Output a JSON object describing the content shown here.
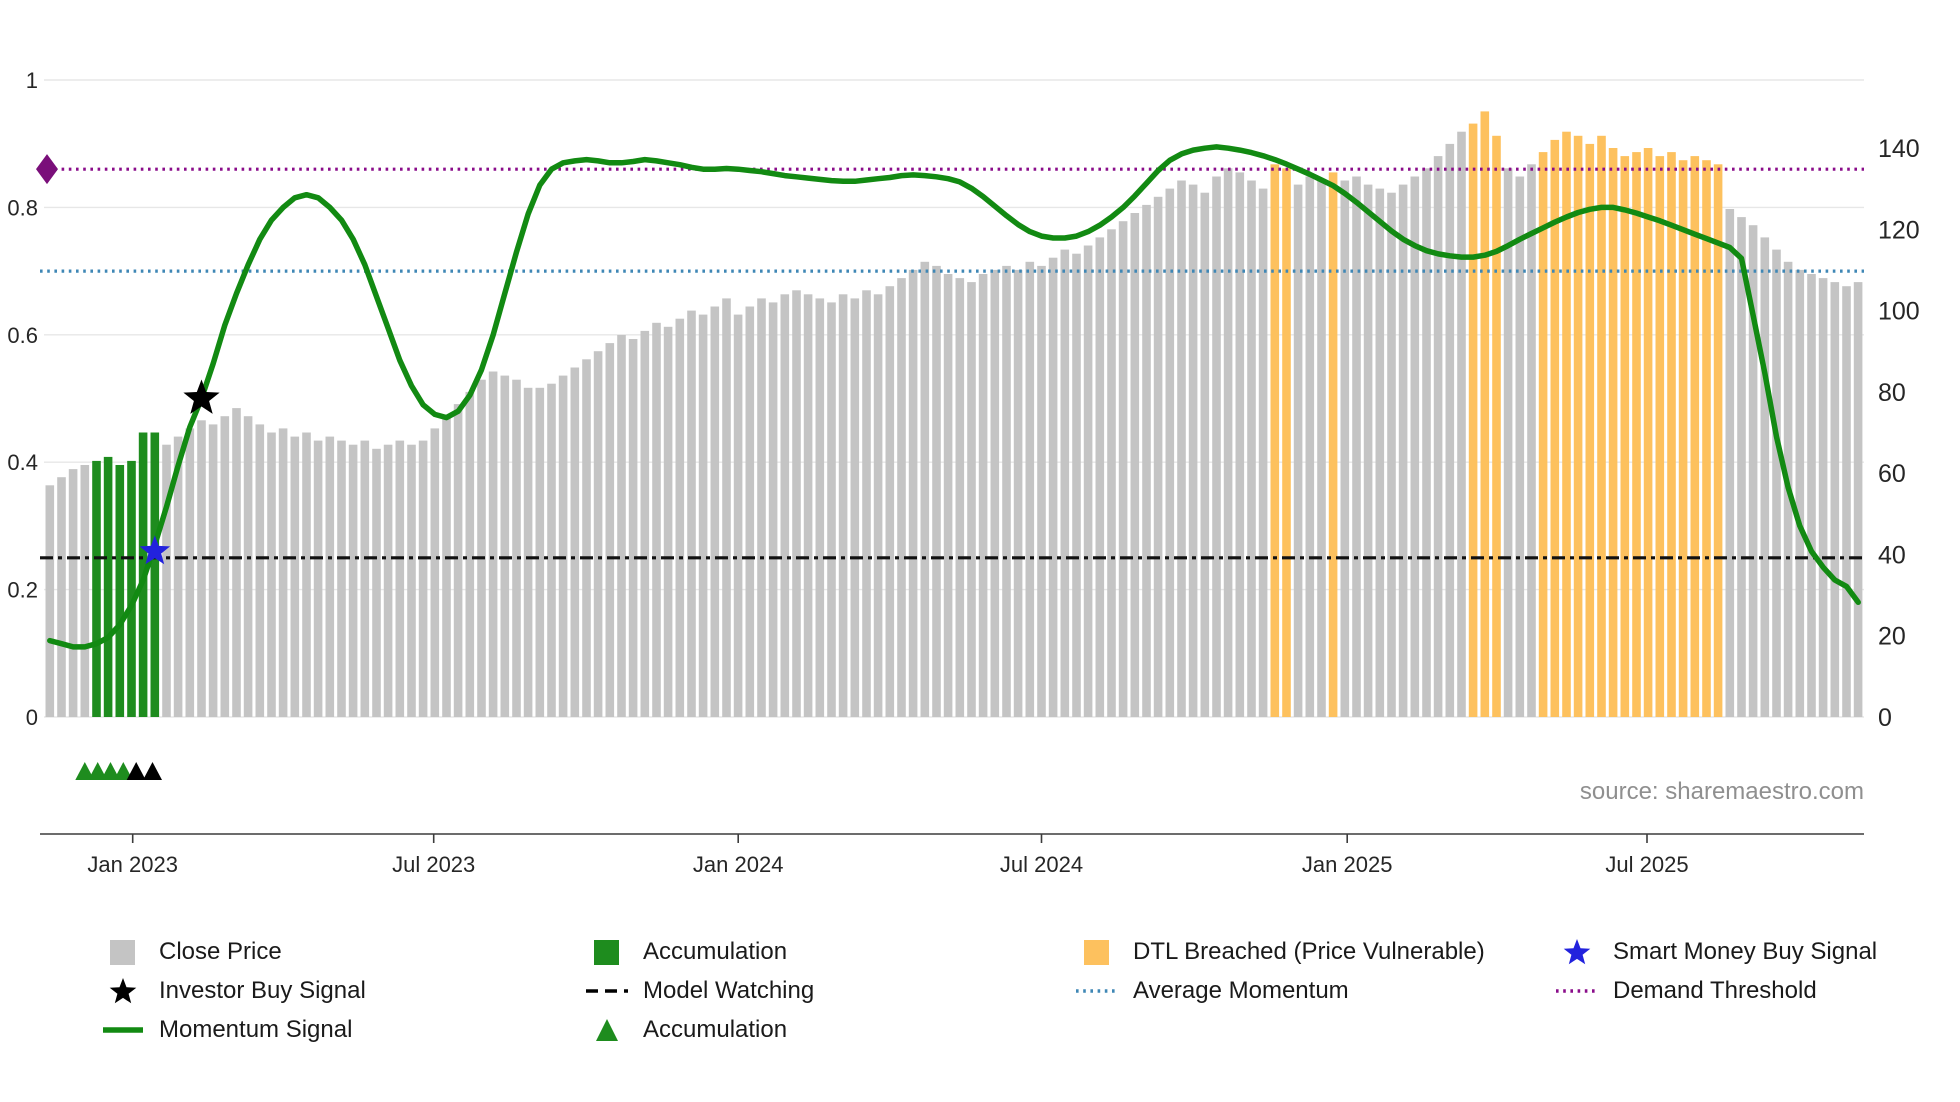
{
  "chart_data": {
    "type": "bar",
    "title": "",
    "source": "source: sharemaestro.com",
    "grid": true,
    "x_axis": {
      "ticks": [
        {
          "label": "Jan 2023",
          "index": 7.6
        },
        {
          "label": "Jul 2023",
          "index": 33.4
        },
        {
          "label": "Jan 2024",
          "index": 59.5
        },
        {
          "label": "Jul 2024",
          "index": 85.5
        },
        {
          "label": "Jan 2025",
          "index": 111.7
        },
        {
          "label": "Jul 2025",
          "index": 137.4
        }
      ]
    },
    "left_axis": {
      "range": [
        0,
        1
      ],
      "ticks": [
        {
          "value": 0,
          "label": "0"
        },
        {
          "value": 0.2,
          "label": "0.2"
        },
        {
          "value": 0.4,
          "label": "0.4"
        },
        {
          "value": 0.6,
          "label": "0.6"
        },
        {
          "value": 0.8,
          "label": "0.8"
        },
        {
          "value": 1,
          "label": "1"
        }
      ]
    },
    "right_axis": {
      "range": [
        0,
        140
      ],
      "ticks": [
        {
          "value": 0,
          "label": "0"
        },
        {
          "value": 20,
          "label": "20"
        },
        {
          "value": 40,
          "label": "40"
        },
        {
          "value": 60,
          "label": "60"
        },
        {
          "value": 80,
          "label": "80"
        },
        {
          "value": 100,
          "label": "100"
        },
        {
          "value": 120,
          "label": "120"
        },
        {
          "value": 140,
          "label": "140"
        }
      ]
    },
    "price_series": {
      "name": "Close Price",
      "axis": "right",
      "values": [
        57,
        59,
        61,
        62,
        63,
        64,
        62,
        63,
        70,
        70,
        67,
        69,
        71,
        73,
        72,
        74,
        76,
        74,
        72,
        70,
        71,
        69,
        70,
        68,
        69,
        68,
        67,
        68,
        66,
        67,
        68,
        67,
        68,
        71,
        74,
        77,
        80,
        83,
        85,
        84,
        83,
        81,
        81,
        82,
        84,
        86,
        88,
        90,
        92,
        94,
        93,
        95,
        97,
        96,
        98,
        100,
        99,
        101,
        103,
        99,
        101,
        103,
        102,
        104,
        105,
        104,
        103,
        102,
        104,
        103,
        105,
        104,
        106,
        108,
        110,
        112,
        111,
        109,
        108,
        107,
        109,
        110,
        111,
        110,
        112,
        111,
        113,
        115,
        114,
        116,
        118,
        120,
        122,
        124,
        126,
        128,
        130,
        132,
        131,
        129,
        133,
        135,
        134,
        132,
        130,
        136,
        135,
        131,
        133,
        132,
        134,
        132,
        133,
        131,
        130,
        129,
        131,
        133,
        135,
        138,
        141,
        144,
        146,
        149,
        143,
        135,
        133,
        136,
        139,
        142,
        144,
        143,
        141,
        143,
        140,
        138,
        139,
        140,
        138,
        139,
        137,
        138,
        137,
        136,
        125,
        123,
        121,
        118,
        115,
        112,
        110,
        109,
        108,
        107,
        106,
        107
      ],
      "accumulation_indices": [
        4,
        5,
        6,
        7,
        8,
        9
      ],
      "dtl_breached_indices": [
        105,
        106,
        110,
        122,
        123,
        124,
        128,
        129,
        130,
        131,
        132,
        133,
        134,
        135,
        136,
        137,
        138,
        139,
        140,
        141,
        142,
        143
      ]
    },
    "momentum_series": {
      "name": "Momentum Signal",
      "axis": "left",
      "values": [
        0.12,
        0.115,
        0.11,
        0.11,
        0.115,
        0.125,
        0.145,
        0.175,
        0.215,
        0.27,
        0.33,
        0.395,
        0.455,
        0.5,
        0.555,
        0.615,
        0.665,
        0.71,
        0.75,
        0.78,
        0.8,
        0.815,
        0.82,
        0.815,
        0.8,
        0.78,
        0.75,
        0.71,
        0.66,
        0.61,
        0.56,
        0.52,
        0.49,
        0.475,
        0.47,
        0.48,
        0.505,
        0.545,
        0.6,
        0.665,
        0.73,
        0.79,
        0.835,
        0.86,
        0.87,
        0.873,
        0.875,
        0.873,
        0.87,
        0.87,
        0.872,
        0.875,
        0.873,
        0.87,
        0.867,
        0.863,
        0.86,
        0.86,
        0.861,
        0.86,
        0.858,
        0.856,
        0.853,
        0.85,
        0.848,
        0.846,
        0.844,
        0.842,
        0.841,
        0.841,
        0.843,
        0.845,
        0.847,
        0.85,
        0.851,
        0.85,
        0.848,
        0.845,
        0.84,
        0.83,
        0.817,
        0.802,
        0.787,
        0.773,
        0.762,
        0.755,
        0.752,
        0.752,
        0.755,
        0.762,
        0.772,
        0.785,
        0.8,
        0.818,
        0.838,
        0.858,
        0.874,
        0.884,
        0.89,
        0.893,
        0.895,
        0.893,
        0.89,
        0.886,
        0.881,
        0.875,
        0.868,
        0.86,
        0.852,
        0.843,
        0.834,
        0.822,
        0.808,
        0.793,
        0.778,
        0.763,
        0.75,
        0.74,
        0.732,
        0.727,
        0.724,
        0.722,
        0.722,
        0.725,
        0.731,
        0.74,
        0.75,
        0.759,
        0.768,
        0.777,
        0.785,
        0.792,
        0.797,
        0.8,
        0.8,
        0.796,
        0.791,
        0.785,
        0.779,
        0.772,
        0.765,
        0.758,
        0.751,
        0.744,
        0.737,
        0.72,
        0.63,
        0.54,
        0.44,
        0.36,
        0.3,
        0.26,
        0.235,
        0.215,
        0.205,
        0.18
      ]
    },
    "threshold_lines": [
      {
        "id": "demand-threshold",
        "name": "Demand Threshold",
        "value": 0.86,
        "color": "#8a0d8a",
        "style": "dotted"
      },
      {
        "id": "average-momentum",
        "name": "Average Momentum",
        "value": 0.7,
        "color": "#3f87b5",
        "style": "dotted"
      },
      {
        "id": "model-watching",
        "name": "Model Watching",
        "value": 0.25,
        "color": "#111111",
        "style": "dashdot"
      }
    ],
    "markers": {
      "demand_threshold_marker": {
        "shape": "diamond",
        "color": "#7a0f7a",
        "value": 0.86
      },
      "smart_money_buy_signal": {
        "shape": "star",
        "color": "#2222dd",
        "index": 9,
        "value": 0.26
      },
      "investor_buy_signal": {
        "shape": "star",
        "color": "#000000",
        "index": 13,
        "value": 0.5
      },
      "accumulation_triangles": {
        "green_indices": [
          3.0,
          4.1,
          5.2,
          6.3
        ],
        "black_indices": [
          7.4,
          8.8
        ]
      }
    },
    "colors": {
      "close_price": "#c4c4c4",
      "accumulation": "#1e8c1e",
      "dtl_breached": "#fdc15e",
      "momentum": "#128a12",
      "average_momentum": "#3f87b5",
      "demand_threshold": "#8a0d8a",
      "model_watching": "#111111",
      "smart_money": "#2222dd",
      "investor": "#000000"
    }
  },
  "legend": {
    "columns": [
      [
        {
          "key": "close-price",
          "label": "Close Price",
          "swatch": "square",
          "color": "#c4c4c4",
          "icon": "close-price-square-icon"
        },
        {
          "key": "investor-buy-signal",
          "label": "Investor Buy Signal",
          "swatch": "star",
          "color": "#000000",
          "icon": "investor-buy-signal-star-icon"
        },
        {
          "key": "momentum-signal",
          "label": "Momentum Signal",
          "swatch": "line",
          "color": "#128a12",
          "icon": "momentum-signal-line-icon"
        }
      ],
      [
        {
          "key": "accumulation-bar",
          "label": "Accumulation",
          "swatch": "square",
          "color": "#1e8c1e",
          "icon": "accumulation-square-icon"
        },
        {
          "key": "model-watching",
          "label": "Model Watching",
          "swatch": "dashed",
          "color": "#000000",
          "icon": "model-watching-dash-icon"
        },
        {
          "key": "accumulation-marker",
          "label": "Accumulation",
          "swatch": "triangle",
          "color": "#1e8c1e",
          "icon": "accumulation-triangle-icon"
        }
      ],
      [
        {
          "key": "dtl-breached",
          "label": "DTL Breached (Price Vulnerable)",
          "swatch": "square",
          "color": "#fdc15e",
          "icon": "dtl-breached-square-icon"
        },
        {
          "key": "average-momentum",
          "label": "Average Momentum",
          "swatch": "dotted",
          "color": "#3f87b5",
          "icon": "average-momentum-dots-icon"
        }
      ],
      [
        {
          "key": "smart-money-buy-signal",
          "label": "Smart Money Buy Signal",
          "swatch": "star",
          "color": "#2222dd",
          "icon": "smart-money-star-icon"
        },
        {
          "key": "demand-threshold",
          "label": "Demand Threshold",
          "swatch": "dotted",
          "color": "#8a0d8a",
          "icon": "demand-threshold-dots-icon"
        }
      ]
    ]
  }
}
